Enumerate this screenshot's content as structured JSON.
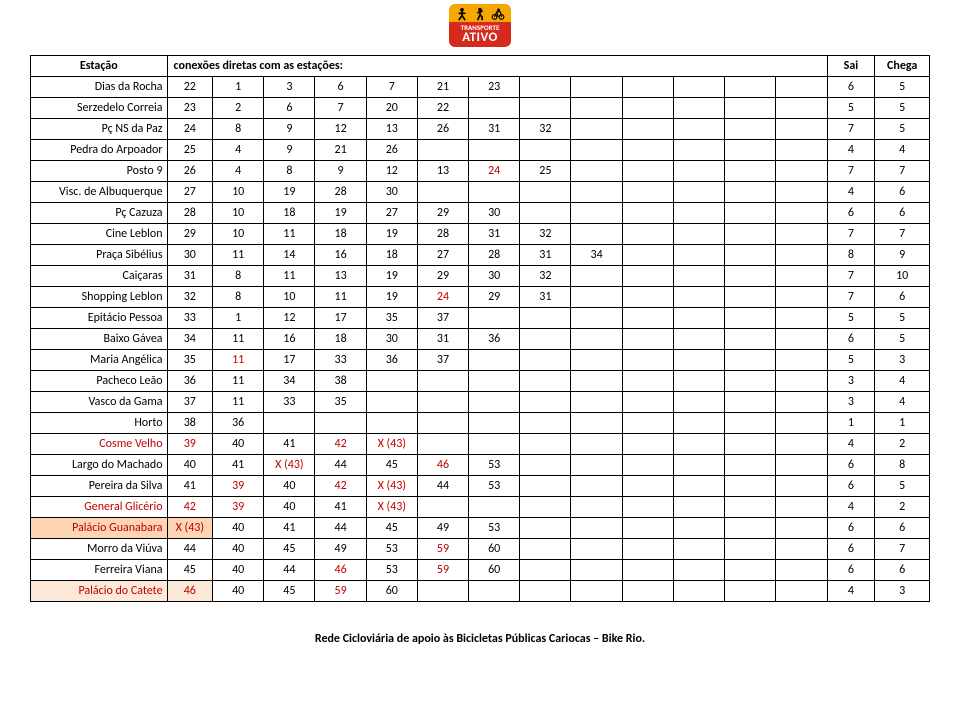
{
  "logo": {
    "small": "TRANSPORTE",
    "big": "ATIVO"
  },
  "header": {
    "estacao": "Estação",
    "conexoes": "conexões diretas com as estações:",
    "sai": "Sai",
    "chega": "Chega"
  },
  "colors": {
    "red": "#c00000",
    "shade1": "#fde9d9",
    "shade2": "#fcd5b4",
    "black": "#000000"
  },
  "rows": [
    {
      "name": "Dias da Rocha",
      "id": "22",
      "c": [
        "1",
        "3",
        "6",
        "7",
        "21",
        "23",
        "",
        "",
        "",
        "",
        "",
        ""
      ],
      "sai": "6",
      "chega": "5"
    },
    {
      "name": "Serzedelo Correia",
      "id": "23",
      "c": [
        "2",
        "6",
        "7",
        "20",
        "22",
        "",
        "",
        "",
        "",
        "",
        "",
        ""
      ],
      "sai": "5",
      "chega": "5"
    },
    {
      "name": "Pç NS da Paz",
      "id": "24",
      "c": [
        "8",
        "9",
        "12",
        "13",
        "26",
        "31",
        "32",
        "",
        "",
        "",
        "",
        ""
      ],
      "sai": "7",
      "chega": "5"
    },
    {
      "name": "Pedra do Arpoador",
      "id": "25",
      "c": [
        "4",
        "9",
        "21",
        "26",
        "",
        "",
        "",
        "",
        "",
        "",
        "",
        ""
      ],
      "sai": "4",
      "chega": "4"
    },
    {
      "name": "Posto 9",
      "id": "26",
      "c": [
        "4",
        "8",
        "9",
        "12",
        "13",
        "24",
        "25",
        "",
        "",
        "",
        "",
        ""
      ],
      "sai": "7",
      "chega": "7",
      "red_idx": [
        5
      ]
    },
    {
      "name": "Visc. de Albuquerque",
      "id": "27",
      "c": [
        "10",
        "19",
        "28",
        "30",
        "",
        "",
        "",
        "",
        "",
        "",
        "",
        ""
      ],
      "sai": "4",
      "chega": "6"
    },
    {
      "name": "Pç Cazuza",
      "id": "28",
      "c": [
        "10",
        "18",
        "19",
        "27",
        "29",
        "30",
        "",
        "",
        "",
        "",
        "",
        ""
      ],
      "sai": "6",
      "chega": "6"
    },
    {
      "name": "Cine Leblon",
      "id": "29",
      "c": [
        "10",
        "11",
        "18",
        "19",
        "28",
        "31",
        "32",
        "",
        "",
        "",
        "",
        ""
      ],
      "sai": "7",
      "chega": "7"
    },
    {
      "name": "Praça Sibélius",
      "id": "30",
      "c": [
        "11",
        "14",
        "16",
        "18",
        "27",
        "28",
        "31",
        "34",
        "",
        "",
        "",
        ""
      ],
      "sai": "8",
      "chega": "9"
    },
    {
      "name": "Caiçaras",
      "id": "31",
      "c": [
        "8",
        "11",
        "13",
        "19",
        "29",
        "30",
        "32",
        "",
        "",
        "",
        "",
        ""
      ],
      "sai": "7",
      "chega": "10"
    },
    {
      "name": "Shopping Leblon",
      "id": "32",
      "c": [
        "8",
        "10",
        "11",
        "19",
        "24",
        "29",
        "31",
        "",
        "",
        "",
        "",
        ""
      ],
      "sai": "7",
      "chega": "6",
      "red_idx": [
        4
      ]
    },
    {
      "name": "Epitácio Pessoa",
      "id": "33",
      "c": [
        "1",
        "12",
        "17",
        "35",
        "37",
        "",
        "",
        "",
        "",
        "",
        "",
        ""
      ],
      "sai": "5",
      "chega": "5"
    },
    {
      "name": "Baixo Gávea",
      "id": "34",
      "c": [
        "11",
        "16",
        "18",
        "30",
        "31",
        "36",
        "",
        "",
        "",
        "",
        "",
        ""
      ],
      "sai": "6",
      "chega": "5"
    },
    {
      "name": "Maria Angélica",
      "id": "35",
      "c": [
        "11",
        "17",
        "33",
        "36",
        "37",
        "",
        "",
        "",
        "",
        "",
        "",
        ""
      ],
      "sai": "5",
      "chega": "3",
      "red_idx": [
        0
      ]
    },
    {
      "name": "Pacheco Leão",
      "id": "36",
      "c": [
        "11",
        "34",
        "38",
        "",
        "",
        "",
        "",
        "",
        "",
        "",
        "",
        ""
      ],
      "sai": "3",
      "chega": "4"
    },
    {
      "name": "Vasco da Gama",
      "id": "37",
      "c": [
        "11",
        "33",
        "35",
        "",
        "",
        "",
        "",
        "",
        "",
        "",
        "",
        ""
      ],
      "sai": "3",
      "chega": "4"
    },
    {
      "name": "Horto",
      "id": "38",
      "c": [
        "36",
        "",
        "",
        "",
        "",
        "",
        "",
        "",
        "",
        "",
        "",
        ""
      ],
      "sai": "1",
      "chega": "1"
    },
    {
      "name": "Cosme Velho",
      "id": "39",
      "c": [
        "40",
        "41",
        "42",
        "X (43)",
        "",
        "",
        "",
        "",
        "",
        "",
        "",
        ""
      ],
      "sai": "4",
      "chega": "2",
      "name_red": true,
      "id_red": true,
      "red_idx": [
        2,
        3
      ]
    },
    {
      "name": "Largo do Machado",
      "id": "40",
      "c": [
        "41",
        "X (43)",
        "44",
        "45",
        "46",
        "53",
        "",
        "",
        "",
        "",
        "",
        ""
      ],
      "sai": "6",
      "chega": "8",
      "red_idx": [
        1,
        4
      ]
    },
    {
      "name": "Pereira da Silva",
      "id": "41",
      "c": [
        "39",
        "40",
        "42",
        "X (43)",
        "44",
        "53",
        "",
        "",
        "",
        "",
        "",
        ""
      ],
      "sai": "6",
      "chega": "5",
      "red_idx": [
        0,
        2,
        3
      ]
    },
    {
      "name": "General Glicério",
      "id": "42",
      "c": [
        "39",
        "40",
        "41",
        "X (43)",
        "",
        "",
        "",
        "",
        "",
        "",
        "",
        ""
      ],
      "sai": "4",
      "chega": "2",
      "name_red": true,
      "id_red": true,
      "red_idx": [
        0,
        3
      ]
    },
    {
      "name": "Palácio Guanabara",
      "id": "X (43)",
      "c": [
        "40",
        "41",
        "44",
        "45",
        "49",
        "53",
        "",
        "",
        "",
        "",
        "",
        ""
      ],
      "sai": "6",
      "chega": "6",
      "name_red": true,
      "id_red": true,
      "shade": 2
    },
    {
      "name": "Morro da Viúva",
      "id": "44",
      "c": [
        "40",
        "45",
        "49",
        "53",
        "59",
        "60",
        "",
        "",
        "",
        "",
        "",
        ""
      ],
      "sai": "6",
      "chega": "7",
      "red_idx": [
        4
      ]
    },
    {
      "name": "Ferreira Viana",
      "id": "45",
      "c": [
        "40",
        "44",
        "46",
        "53",
        "59",
        "60",
        "",
        "",
        "",
        "",
        "",
        ""
      ],
      "sai": "6",
      "chega": "6",
      "red_idx": [
        2,
        4
      ]
    },
    {
      "name": "Palácio do Catete",
      "id": "46",
      "c": [
        "40",
        "45",
        "59",
        "60",
        "",
        "",
        "",
        "",
        "",
        "",
        "",
        ""
      ],
      "sai": "4",
      "chega": "3",
      "name_red": true,
      "id_red": true,
      "red_idx": [
        2
      ],
      "shade": 1
    }
  ],
  "footer": "Rede Cicloviária de apoio às Bicicletas Públicas Cariocas – Bike Rio."
}
